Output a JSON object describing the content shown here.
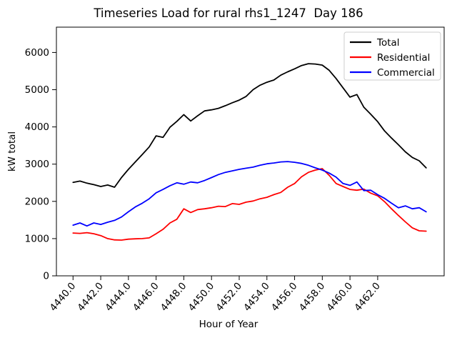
{
  "chart_data": {
    "type": "line",
    "title": "Timeseries Load for rural rhs1_1247  Day 186",
    "xlabel": "Hour of Year",
    "ylabel": "kW total",
    "xlim": [
      4438.8,
      4466.8
    ],
    "ylim": [
      0,
      6680
    ],
    "grid": false,
    "background_color": "#ffffff",
    "axes_edge_color": "#000000",
    "xticks": {
      "values": [
        4440,
        4442,
        4444,
        4446,
        4448,
        4450,
        4452,
        4454,
        4456,
        4458,
        4460,
        4462
      ],
      "labels": [
        "4440.0",
        "4442.0",
        "4444.0",
        "4446.0",
        "4448.0",
        "4450.0",
        "4452.0",
        "4454.0",
        "4456.0",
        "4458.0",
        "4460.0",
        "4462.0"
      ],
      "rotation_deg": -50
    },
    "yticks": {
      "values": [
        0,
        1000,
        2000,
        3000,
        4000,
        5000,
        6000
      ],
      "labels": [
        "0",
        "1000",
        "2000",
        "3000",
        "4000",
        "5000",
        "6000"
      ]
    },
    "legend": {
      "position": "upper-right",
      "border_color": "#cccccc",
      "entries": [
        {
          "label": "Total",
          "color": "#000000"
        },
        {
          "label": "Residential",
          "color": "#ff0000"
        },
        {
          "label": "Commercial",
          "color": "#0000ff"
        }
      ]
    },
    "x": [
      4440.0,
      4440.5,
      4441.0,
      4441.5,
      4442.0,
      4442.5,
      4443.0,
      4443.5,
      4444.0,
      4444.5,
      4445.0,
      4445.5,
      4446.0,
      4446.5,
      4447.0,
      4447.5,
      4448.0,
      4448.5,
      4449.0,
      4449.5,
      4450.0,
      4450.5,
      4451.0,
      4451.5,
      4452.0,
      4452.5,
      4453.0,
      4453.5,
      4454.0,
      4454.5,
      4455.0,
      4455.5,
      4456.0,
      4456.5,
      4457.0,
      4457.5,
      4458.0,
      4458.5,
      4459.0,
      4459.5,
      4460.0,
      4460.5,
      4461.0,
      4461.5,
      4462.0,
      4462.5,
      4463.0,
      4463.5,
      4464.0,
      4464.5,
      4465.0,
      4465.5
    ],
    "series": [
      {
        "name": "Total",
        "color": "#000000",
        "values": [
          2510,
          2545,
          2490,
          2450,
          2400,
          2440,
          2380,
          2640,
          2860,
          3060,
          3260,
          3460,
          3760,
          3720,
          3990,
          4150,
          4330,
          4160,
          4300,
          4430,
          4460,
          4500,
          4570,
          4650,
          4720,
          4820,
          5000,
          5120,
          5200,
          5260,
          5390,
          5480,
          5560,
          5650,
          5700,
          5690,
          5660,
          5520,
          5300,
          5050,
          4800,
          4870,
          4530,
          4340,
          4140,
          3890,
          3700,
          3520,
          3330,
          3180,
          3090,
          2900
        ]
      },
      {
        "name": "Residential",
        "color": "#ff0000",
        "values": [
          1150,
          1140,
          1160,
          1130,
          1080,
          1000,
          965,
          960,
          985,
          995,
          1000,
          1020,
          1130,
          1250,
          1420,
          1520,
          1800,
          1700,
          1780,
          1800,
          1830,
          1870,
          1860,
          1940,
          1920,
          1980,
          2010,
          2070,
          2110,
          2180,
          2240,
          2380,
          2480,
          2660,
          2780,
          2840,
          2880,
          2700,
          2480,
          2400,
          2320,
          2300,
          2330,
          2220,
          2150,
          1990,
          1800,
          1620,
          1450,
          1290,
          1210,
          1200
        ]
      },
      {
        "name": "Commercial",
        "color": "#0000ff",
        "values": [
          1360,
          1420,
          1340,
          1420,
          1380,
          1440,
          1490,
          1580,
          1720,
          1850,
          1950,
          2070,
          2230,
          2320,
          2420,
          2500,
          2460,
          2520,
          2500,
          2560,
          2640,
          2720,
          2780,
          2820,
          2860,
          2890,
          2920,
          2970,
          3010,
          3030,
          3060,
          3070,
          3050,
          3020,
          2970,
          2900,
          2840,
          2760,
          2650,
          2480,
          2430,
          2520,
          2290,
          2300,
          2180,
          2080,
          1950,
          1830,
          1880,
          1800,
          1830,
          1720
        ]
      }
    ]
  }
}
